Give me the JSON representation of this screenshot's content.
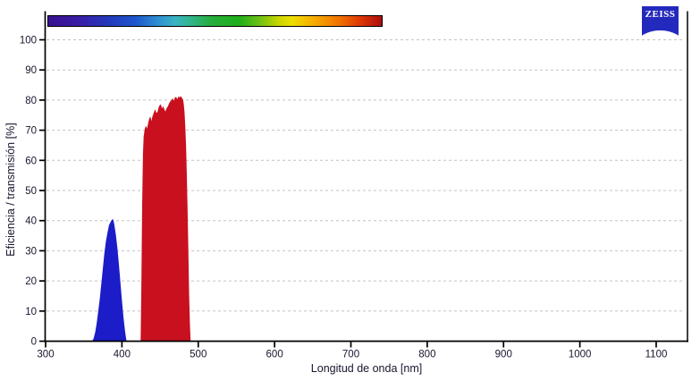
{
  "logo": {
    "text": "ZEISS",
    "bg_color": "#2429bd"
  },
  "chart_data": {
    "type": "area",
    "title": "",
    "xlabel": "Longitud de onda [nm]",
    "ylabel": "Eficiencia / transmisión [%]",
    "xlim": [
      300,
      1141
    ],
    "ylim": [
      0,
      100
    ],
    "x_ticks": [
      300,
      400,
      500,
      600,
      700,
      800,
      900,
      1000,
      1100
    ],
    "y_ticks": [
      0,
      10,
      20,
      30,
      40,
      50,
      60,
      70,
      80,
      90,
      100
    ],
    "grid": "horizontal-dashed",
    "legend": "none",
    "axis_color": "#000000",
    "grid_color": "#c3c3c3",
    "tick_label_color": "#16162e",
    "series": [
      {
        "name": "blue_band",
        "color": "#1c1cc8",
        "points": [
          [
            361,
            0
          ],
          [
            363,
            1
          ],
          [
            365,
            3
          ],
          [
            367,
            6
          ],
          [
            369,
            10
          ],
          [
            371,
            14
          ],
          [
            373,
            19
          ],
          [
            375,
            24
          ],
          [
            377,
            29
          ],
          [
            379,
            33
          ],
          [
            381,
            36
          ],
          [
            383,
            38.5
          ],
          [
            385,
            39.5
          ],
          [
            387,
            40.3
          ],
          [
            388,
            40.6
          ],
          [
            389,
            40
          ],
          [
            390,
            38.8
          ],
          [
            392,
            35.5
          ],
          [
            394,
            31
          ],
          [
            396,
            25.5
          ],
          [
            398,
            19.5
          ],
          [
            400,
            13.5
          ],
          [
            402,
            8
          ],
          [
            404,
            3.5
          ],
          [
            406,
            0
          ]
        ]
      },
      {
        "name": "red_band",
        "color": "#c8101e",
        "points": [
          [
            424.5,
            0
          ],
          [
            425.5,
            18
          ],
          [
            426.5,
            45
          ],
          [
            427.5,
            62
          ],
          [
            428.5,
            68
          ],
          [
            430,
            70.5
          ],
          [
            431.5,
            71.5
          ],
          [
            433,
            70.5
          ],
          [
            434.5,
            72.5
          ],
          [
            436,
            74
          ],
          [
            437.5,
            74.5
          ],
          [
            438.5,
            73
          ],
          [
            440,
            74.5
          ],
          [
            442,
            76
          ],
          [
            443.5,
            77
          ],
          [
            445,
            75.8
          ],
          [
            446.5,
            76
          ],
          [
            448,
            77.5
          ],
          [
            449.5,
            78.3
          ],
          [
            451,
            78.6
          ],
          [
            452.5,
            77.2
          ],
          [
            454,
            78
          ],
          [
            455.5,
            77
          ],
          [
            457,
            76.2
          ],
          [
            458.5,
            77.3
          ],
          [
            460,
            77.8
          ],
          [
            462,
            79
          ],
          [
            463.5,
            79.6
          ],
          [
            465,
            80
          ],
          [
            466.5,
            80.6
          ],
          [
            468,
            79.8
          ],
          [
            469.5,
            80.9
          ],
          [
            471,
            81
          ],
          [
            472.5,
            80.3
          ],
          [
            474,
            81.2
          ],
          [
            475.5,
            80.9
          ],
          [
            477,
            81.3
          ],
          [
            478.5,
            80.8
          ],
          [
            480,
            80.2
          ],
          [
            481,
            78.8
          ],
          [
            482,
            76
          ],
          [
            483,
            71.5
          ],
          [
            484,
            65
          ],
          [
            485,
            56
          ],
          [
            486,
            44
          ],
          [
            487,
            30
          ],
          [
            488,
            16
          ],
          [
            489,
            6
          ],
          [
            490,
            0
          ]
        ]
      }
    ],
    "spectrum_bar": {
      "range_nm": [
        300,
        740
      ],
      "stops": [
        {
          "pos": 0.0,
          "color": "#36128e"
        },
        {
          "pos": 0.09,
          "color": "#3a1da6"
        },
        {
          "pos": 0.18,
          "color": "#2439bb"
        },
        {
          "pos": 0.26,
          "color": "#1e55cc"
        },
        {
          "pos": 0.33,
          "color": "#2f8fd0"
        },
        {
          "pos": 0.38,
          "color": "#3ab3c3"
        },
        {
          "pos": 0.43,
          "color": "#2fb489"
        },
        {
          "pos": 0.49,
          "color": "#27ad3a"
        },
        {
          "pos": 0.57,
          "color": "#1fae1b"
        },
        {
          "pos": 0.63,
          "color": "#68bf16"
        },
        {
          "pos": 0.69,
          "color": "#c8d500"
        },
        {
          "pos": 0.73,
          "color": "#ecdf00"
        },
        {
          "pos": 0.78,
          "color": "#f4b800"
        },
        {
          "pos": 0.83,
          "color": "#f39300"
        },
        {
          "pos": 0.88,
          "color": "#ee6c00"
        },
        {
          "pos": 0.94,
          "color": "#dc3404"
        },
        {
          "pos": 1.0,
          "color": "#a90f0e"
        }
      ]
    }
  }
}
